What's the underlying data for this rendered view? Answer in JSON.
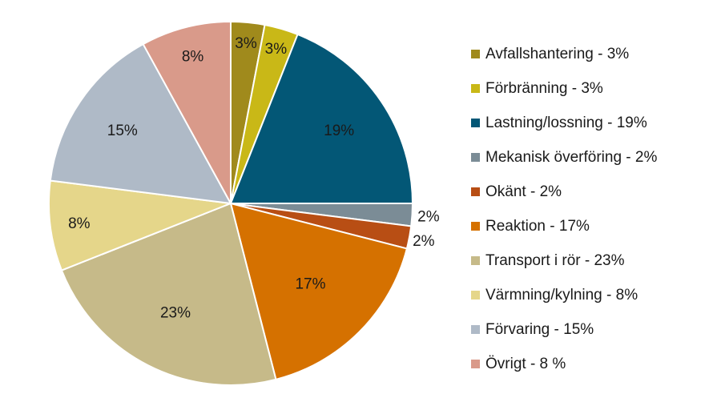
{
  "chart_data": {
    "type": "pie",
    "title": "",
    "slices": [
      {
        "name": "Avfallshantering",
        "value": 3,
        "label": "3%",
        "legend": "Avfallshantering - 3%",
        "color": "#A08A1C"
      },
      {
        "name": "Förbränning",
        "value": 3,
        "label": "3%",
        "legend": "Förbränning - 3%",
        "color": "#C9B817"
      },
      {
        "name": "Lastning/lossning",
        "value": 19,
        "label": "19%",
        "legend": "Lastning/lossning - 19%",
        "color": "#035776"
      },
      {
        "name": "Mekanisk överföring",
        "value": 2,
        "label": "2%",
        "legend": "Mekanisk överföring - 2%",
        "color": "#7B8C96"
      },
      {
        "name": "Okänt",
        "value": 2,
        "label": "2%",
        "legend": "Okänt - 2%",
        "color": "#B84E14"
      },
      {
        "name": "Reaktion",
        "value": 17,
        "label": "17%",
        "legend": "Reaktion - 17%",
        "color": "#D57100"
      },
      {
        "name": "Transport i rör",
        "value": 23,
        "label": "23%",
        "legend": "Transport i rör - 23%",
        "color": "#C6BA89"
      },
      {
        "name": "Värmning/kylning",
        "value": 8,
        "label": "8%",
        "legend": "Värmning/kylning - 8%",
        "color": "#E5D68A"
      },
      {
        "name": "Förvaring",
        "value": 15,
        "label": "15%",
        "legend": "Förvaring - 15%",
        "color": "#AFBAC7"
      },
      {
        "name": "Övrigt",
        "value": 8,
        "label": "8%",
        "legend": "Övrigt - 8 %",
        "color": "#D99A8A"
      }
    ],
    "legend_position": "right"
  }
}
